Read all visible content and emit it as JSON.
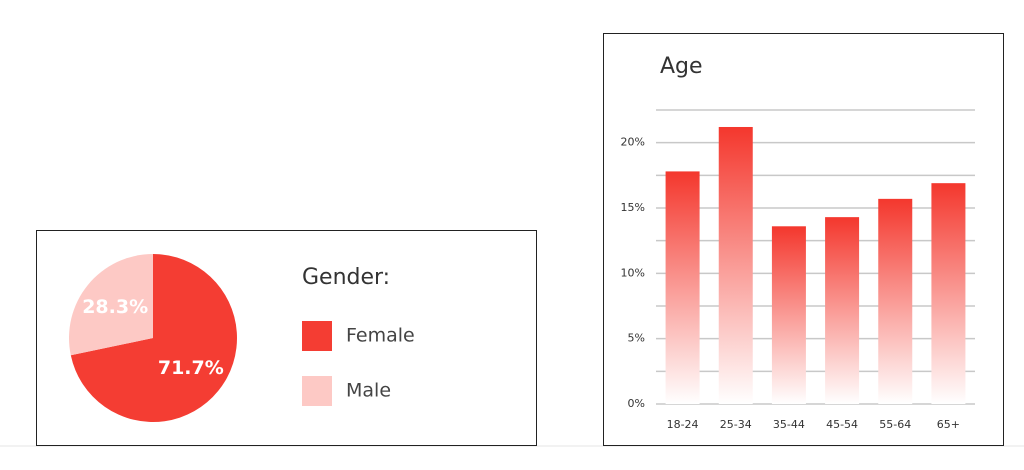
{
  "chart_data": [
    {
      "type": "pie",
      "legend_title": "Gender:",
      "categories": [
        "Female",
        "Male"
      ],
      "values": [
        71.7,
        28.3
      ],
      "value_labels": [
        "71.7%",
        "28.3%"
      ],
      "colors": [
        "#f43d33",
        "#fdc9c5"
      ]
    },
    {
      "type": "bar",
      "title": "Age",
      "categories": [
        "18-24",
        "25-34",
        "35-44",
        "45-54",
        "55-64",
        "65+"
      ],
      "values": [
        17.8,
        21.2,
        13.6,
        14.3,
        15.7,
        16.9
      ],
      "color": "#f4372d",
      "ylim": [
        0,
        22.5
      ],
      "yticks": [
        {
          "value": 0,
          "label": "0%"
        },
        {
          "value": 5,
          "label": "5%"
        },
        {
          "value": 10,
          "label": "10%"
        },
        {
          "value": 15,
          "label": "15%"
        },
        {
          "value": 20,
          "label": "20%"
        }
      ],
      "minor_yticks": [
        2.5,
        7.5,
        12.5,
        17.5,
        22.5
      ],
      "grid": true
    }
  ]
}
